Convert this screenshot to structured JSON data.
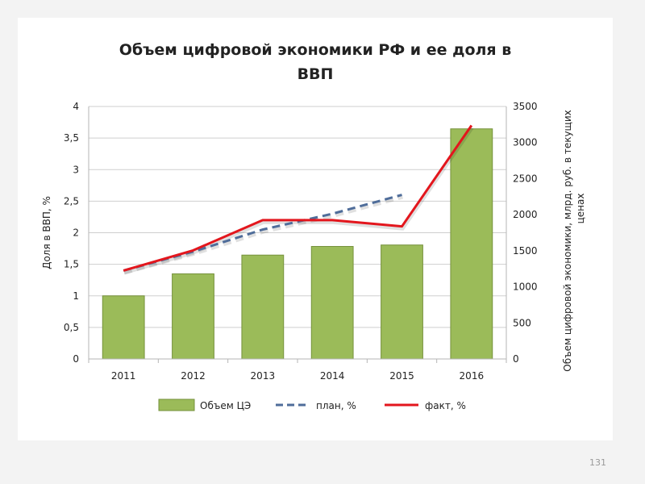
{
  "page_number": "131",
  "colors": {
    "bar": "#9bbb59",
    "bar_stroke": "#76923c",
    "plan": "#4f6d9a",
    "fact": "#e3161d",
    "grid": "#cfcfcf"
  },
  "chart_data": {
    "type": "bar",
    "title_lines": [
      "Объем цифровой экономики РФ и ее доля в",
      "ВВП"
    ],
    "categories": [
      "2011",
      "2012",
      "2013",
      "2014",
      "2015",
      "2016"
    ],
    "ylabel_left": "Доля в ВВП, %",
    "ylabel_right_lines": [
      "Объем цифровой экономики, млрд. руб. в текущих",
      "ценах"
    ],
    "y_left": {
      "min": 0,
      "max": 4,
      "ticks": [
        "0",
        "0,5",
        "1",
        "1,5",
        "2",
        "2,5",
        "3",
        "3,5",
        "4"
      ]
    },
    "y_right": {
      "min": 0,
      "max": 3500,
      "ticks": [
        "0",
        "500",
        "1000",
        "1500",
        "2000",
        "2500",
        "3000",
        "3500"
      ]
    },
    "grid": "horizontal",
    "legend_position": "bottom",
    "series": [
      {
        "name": "Объем ЦЭ",
        "type": "bar",
        "axis": "right",
        "values": [
          875,
          1180,
          1440,
          1560,
          1580,
          3190
        ]
      },
      {
        "name": "план, %",
        "type": "line",
        "style": "dashed",
        "axis": "left",
        "values": [
          1.4,
          1.7,
          2.05,
          2.3,
          2.6,
          null
        ]
      },
      {
        "name": "факт, %",
        "type": "line",
        "style": "solid",
        "axis": "left",
        "values": [
          1.4,
          1.72,
          2.2,
          2.2,
          2.1,
          3.7
        ]
      }
    ]
  }
}
